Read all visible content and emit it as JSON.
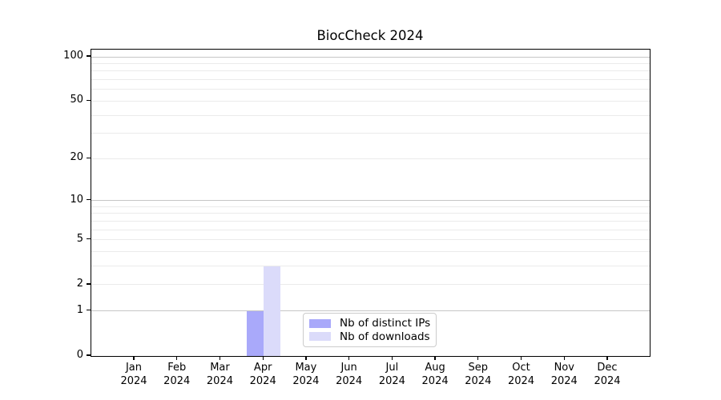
{
  "chart_data": {
    "type": "bar",
    "title": "BiocCheck 2024",
    "categories": [
      "Jan 2024",
      "Feb 2024",
      "Mar 2024",
      "Apr 2024",
      "May 2024",
      "Jun 2024",
      "Jul 2024",
      "Aug 2024",
      "Sep 2024",
      "Oct 2024",
      "Nov 2024",
      "Dec 2024"
    ],
    "series": [
      {
        "name": "Nb of distinct IPs",
        "color": "#a9a9fa",
        "values": [
          0,
          0,
          0,
          1,
          0,
          0,
          0,
          0,
          0,
          0,
          0,
          0
        ]
      },
      {
        "name": "Nb of downloads",
        "color": "#dbdbfa",
        "values": [
          0,
          0,
          0,
          3,
          0,
          0,
          0,
          0,
          0,
          0,
          0,
          0
        ]
      }
    ],
    "xlabel": "",
    "ylabel": "",
    "yscale": "log1p",
    "ylim": [
      0,
      113
    ],
    "yticks": [
      0,
      1,
      2,
      5,
      10,
      20,
      50,
      100
    ],
    "grid": {
      "minor_values": [
        2,
        3,
        4,
        5,
        6,
        7,
        8,
        9,
        20,
        30,
        40,
        50,
        60,
        70,
        80,
        90
      ],
      "major_values": [
        1,
        10,
        100
      ],
      "minor_color": "#ebebeb",
      "major_color": "#c6c6c6"
    },
    "legend_position": "lower center",
    "spine_color": "#000000"
  }
}
